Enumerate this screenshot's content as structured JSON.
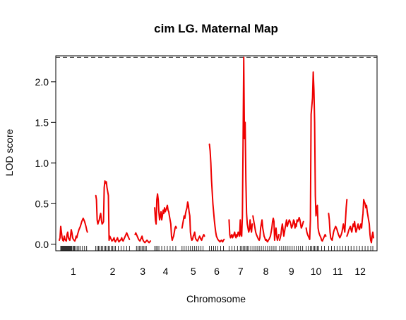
{
  "chart_data": {
    "type": "line",
    "title": "cim LG. Maternal Map",
    "xlabel": "Chromosome",
    "ylabel": "LOD score",
    "ylim": [
      -0.08,
      2.32
    ],
    "yticks": [
      0.0,
      0.5,
      1.0,
      1.5,
      2.0
    ],
    "ytick_labels": [
      "0.0",
      "0.5",
      "1.0",
      "1.5",
      "2.0"
    ],
    "threshold": 2.3,
    "xlim": [
      0,
      448
    ],
    "chromosomes": [
      {
        "label": "1",
        "start": 0,
        "end": 40,
        "x": [
          0,
          1,
          2,
          3,
          4,
          5,
          6,
          7,
          8,
          9,
          10,
          11,
          12,
          13,
          14,
          15,
          16,
          17,
          18,
          19,
          20,
          21,
          22,
          23,
          24,
          25,
          26,
          27,
          28,
          29,
          30,
          31,
          32,
          33,
          34,
          35,
          36,
          37,
          38,
          39,
          40
        ],
        "y": [
          0.05,
          0.08,
          0.22,
          0.15,
          0.08,
          0.05,
          0.04,
          0.1,
          0.06,
          0.05,
          0.04,
          0.12,
          0.15,
          0.08,
          0.06,
          0.05,
          0.1,
          0.18,
          0.14,
          0.08,
          0.06,
          0.05,
          0.04,
          0.06,
          0.1,
          0.08,
          0.12,
          0.15,
          0.18,
          0.2,
          0.22,
          0.25,
          0.28,
          0.3,
          0.32,
          0.3,
          0.28,
          0.25,
          0.22,
          0.18,
          0.15
        ]
      },
      {
        "label": "2",
        "start": 52,
        "end": 100,
        "x": [
          52,
          53,
          54,
          55,
          56,
          57,
          58,
          59,
          60,
          61,
          62,
          63,
          64,
          65,
          66,
          67,
          68,
          69,
          70,
          71,
          72,
          73,
          74,
          75,
          76,
          77,
          78,
          79,
          80,
          81,
          82,
          83,
          84,
          85,
          86,
          87,
          88,
          89,
          90,
          91,
          92,
          93,
          94,
          95,
          96,
          97,
          98,
          99,
          100
        ],
        "y": [
          0.6,
          0.55,
          0.3,
          0.25,
          0.28,
          0.3,
          0.35,
          0.38,
          0.3,
          0.25,
          0.26,
          0.28,
          0.7,
          0.78,
          0.75,
          0.77,
          0.7,
          0.65,
          0.6,
          0.05,
          0.1,
          0.08,
          0.06,
          0.04,
          0.05,
          0.06,
          0.08,
          0.04,
          0.03,
          0.05,
          0.06,
          0.08,
          0.05,
          0.03,
          0.04,
          0.05,
          0.06,
          0.08,
          0.05,
          0.04,
          0.06,
          0.08,
          0.1,
          0.12,
          0.14,
          0.12,
          0.1,
          0.08,
          0.06
        ]
      },
      {
        "label": "3",
        "start": 108,
        "end": 130,
        "x": [
          108,
          109,
          110,
          111,
          112,
          113,
          114,
          115,
          116,
          117,
          118,
          119,
          120,
          121,
          122,
          123,
          124,
          125,
          126,
          127,
          128,
          129,
          130
        ],
        "y": [
          0.12,
          0.14,
          0.12,
          0.1,
          0.08,
          0.06,
          0.05,
          0.04,
          0.06,
          0.08,
          0.1,
          0.06,
          0.04,
          0.03,
          0.02,
          0.03,
          0.04,
          0.05,
          0.04,
          0.03,
          0.02,
          0.03,
          0.04
        ]
      },
      {
        "label": "4",
        "start": 136,
        "end": 167,
        "x": [
          136,
          137,
          138,
          139,
          140,
          141,
          142,
          143,
          144,
          145,
          146,
          147,
          148,
          149,
          150,
          151,
          152,
          153,
          154,
          155,
          156,
          157,
          158,
          159,
          160,
          161,
          162,
          163,
          164,
          165,
          166,
          167
        ],
        "y": [
          0.45,
          0.3,
          0.25,
          0.55,
          0.62,
          0.55,
          0.4,
          0.3,
          0.35,
          0.4,
          0.3,
          0.35,
          0.42,
          0.38,
          0.45,
          0.4,
          0.42,
          0.45,
          0.48,
          0.42,
          0.4,
          0.35,
          0.3,
          0.25,
          0.1,
          0.05,
          0.08,
          0.1,
          0.15,
          0.2,
          0.22,
          0.2
        ]
      },
      {
        "label": "5",
        "start": 175,
        "end": 207,
        "x": [
          175,
          176,
          177,
          178,
          179,
          180,
          181,
          182,
          183,
          184,
          185,
          186,
          187,
          188,
          189,
          190,
          191,
          192,
          193,
          194,
          195,
          196,
          197,
          198,
          199,
          200,
          201,
          202,
          203,
          204,
          205,
          206,
          207
        ],
        "y": [
          0.2,
          0.25,
          0.3,
          0.35,
          0.32,
          0.38,
          0.42,
          0.45,
          0.52,
          0.48,
          0.4,
          0.35,
          0.15,
          0.08,
          0.05,
          0.06,
          0.1,
          0.12,
          0.15,
          0.08,
          0.06,
          0.05,
          0.04,
          0.06,
          0.08,
          0.1,
          0.08,
          0.06,
          0.05,
          0.08,
          0.1,
          0.12,
          0.1
        ]
      },
      {
        "label": "6",
        "start": 214,
        "end": 235,
        "x": [
          214,
          215,
          216,
          217,
          218,
          219,
          220,
          221,
          222,
          223,
          224,
          225,
          226,
          227,
          228,
          229,
          230,
          231,
          232,
          233,
          234,
          235
        ],
        "y": [
          1.23,
          1.15,
          1.0,
          0.8,
          0.65,
          0.5,
          0.4,
          0.3,
          0.22,
          0.15,
          0.1,
          0.08,
          0.06,
          0.05,
          0.04,
          0.03,
          0.04,
          0.05,
          0.04,
          0.03,
          0.05,
          0.06
        ]
      },
      {
        "label": "7",
        "start": 242,
        "end": 275,
        "x": [
          242,
          243,
          244,
          245,
          246,
          247,
          248,
          249,
          250,
          251,
          252,
          253,
          254,
          255,
          256,
          257,
          258,
          259,
          260,
          261,
          262,
          263,
          264,
          265,
          266,
          267,
          268,
          269,
          270,
          271,
          272,
          273,
          274,
          275
        ],
        "y": [
          0.3,
          0.12,
          0.08,
          0.1,
          0.12,
          0.08,
          0.1,
          0.12,
          0.15,
          0.1,
          0.08,
          0.12,
          0.1,
          0.15,
          0.14,
          0.1,
          0.3,
          0.12,
          0.1,
          0.35,
          1.2,
          2.3,
          1.3,
          1.5,
          0.8,
          0.38,
          0.25,
          0.2,
          0.15,
          0.18,
          0.3,
          0.2,
          0.15,
          0.25
        ]
      },
      {
        "label": "8",
        "start": 276,
        "end": 313,
        "x": [
          276,
          277,
          278,
          279,
          280,
          281,
          282,
          283,
          284,
          285,
          286,
          287,
          288,
          289,
          290,
          291,
          292,
          293,
          294,
          295,
          296,
          297,
          298,
          299,
          300,
          301,
          302,
          303,
          304,
          305,
          306,
          307,
          308,
          309,
          310,
          311,
          312,
          313
        ],
        "y": [
          0.35,
          0.3,
          0.25,
          0.2,
          0.15,
          0.12,
          0.1,
          0.08,
          0.06,
          0.05,
          0.08,
          0.2,
          0.25,
          0.3,
          0.2,
          0.15,
          0.1,
          0.08,
          0.05,
          0.06,
          0.04,
          0.03,
          0.05,
          0.06,
          0.08,
          0.1,
          0.15,
          0.2,
          0.28,
          0.32,
          0.28,
          0.05,
          0.15,
          0.2,
          0.1,
          0.05,
          0.08,
          0.12
        ]
      },
      {
        "label": "9",
        "start": 314,
        "end": 348,
        "x": [
          314,
          315,
          316,
          317,
          318,
          319,
          320,
          321,
          322,
          323,
          324,
          325,
          326,
          327,
          328,
          329,
          330,
          331,
          332,
          333,
          334,
          335,
          336,
          337,
          338,
          339,
          340,
          341,
          342,
          343,
          344,
          345,
          346,
          347,
          348
        ],
        "y": [
          0.05,
          0.08,
          0.12,
          0.2,
          0.25,
          0.18,
          0.1,
          0.15,
          0.2,
          0.25,
          0.3,
          0.22,
          0.25,
          0.28,
          0.3,
          0.28,
          0.25,
          0.2,
          0.22,
          0.25,
          0.3,
          0.28,
          0.2,
          0.25,
          0.22,
          0.3,
          0.28,
          0.3,
          0.33,
          0.3,
          0.25,
          0.2,
          0.22,
          0.25,
          0.28
        ]
      },
      {
        "label": "10",
        "start": 352,
        "end": 380,
        "x": [
          352,
          353,
          354,
          355,
          356,
          357,
          358,
          359,
          360,
          361,
          362,
          363,
          364,
          365,
          366,
          367,
          368,
          369,
          370,
          371,
          372,
          373,
          374,
          375,
          376,
          377,
          378,
          379,
          380
        ],
        "y": [
          0.2,
          0.15,
          0.12,
          0.1,
          0.08,
          0.06,
          0.3,
          1.6,
          1.7,
          1.8,
          2.12,
          1.9,
          1.5,
          0.6,
          0.35,
          0.45,
          0.48,
          0.2,
          0.15,
          0.12,
          0.1,
          0.08,
          0.05,
          0.04,
          0.06,
          0.08,
          0.1,
          0.12,
          0.1
        ]
      },
      {
        "label": "11",
        "start": 384,
        "end": 410,
        "x": [
          384,
          385,
          386,
          387,
          388,
          389,
          390,
          391,
          392,
          393,
          394,
          395,
          396,
          397,
          398,
          399,
          400,
          401,
          402,
          403,
          404,
          405,
          406,
          407,
          408,
          409,
          410
        ],
        "y": [
          0.38,
          0.3,
          0.15,
          0.08,
          0.06,
          0.05,
          0.1,
          0.15,
          0.18,
          0.2,
          0.22,
          0.2,
          0.18,
          0.15,
          0.12,
          0.1,
          0.08,
          0.1,
          0.12,
          0.15,
          0.2,
          0.25,
          0.2,
          0.15,
          0.3,
          0.45,
          0.55
        ]
      },
      {
        "label": "12",
        "start": 410,
        "end": 448,
        "x": [
          410,
          411,
          412,
          413,
          414,
          415,
          416,
          417,
          418,
          419,
          420,
          421,
          422,
          423,
          424,
          425,
          426,
          427,
          428,
          429,
          430,
          431,
          432,
          433,
          434,
          435,
          436,
          437,
          438,
          439,
          440,
          441,
          442,
          443,
          444,
          445,
          446,
          447,
          448
        ],
        "y": [
          0.1,
          0.12,
          0.15,
          0.18,
          0.2,
          0.22,
          0.18,
          0.15,
          0.2,
          0.25,
          0.22,
          0.28,
          0.2,
          0.15,
          0.18,
          0.22,
          0.25,
          0.2,
          0.18,
          0.22,
          0.25,
          0.2,
          0.3,
          0.38,
          0.55,
          0.52,
          0.5,
          0.45,
          0.48,
          0.4,
          0.35,
          0.3,
          0.25,
          0.12,
          0.05,
          0.02,
          0.1,
          0.15,
          0.08
        ]
      }
    ],
    "markers": [
      2,
      3,
      4,
      5,
      6,
      7,
      8,
      9,
      10,
      11,
      12,
      13,
      14,
      15,
      16,
      17,
      18,
      20,
      21,
      22,
      24,
      26,
      28,
      30,
      33,
      36,
      39,
      52,
      54,
      56,
      58,
      60,
      62,
      64,
      66,
      68,
      70,
      72,
      74,
      76,
      78,
      80,
      84,
      88,
      92,
      96,
      100,
      110,
      112,
      114,
      116,
      118,
      120,
      122,
      124,
      136,
      138,
      140,
      142,
      146,
      150,
      154,
      158,
      162,
      166,
      175,
      178,
      181,
      184,
      187,
      190,
      193,
      196,
      199,
      202,
      205,
      214,
      217,
      220,
      223,
      226,
      230,
      234,
      242,
      246,
      250,
      254,
      258,
      260,
      262,
      264,
      266,
      268,
      270,
      273,
      276,
      279,
      282,
      285,
      288,
      291,
      294,
      297,
      300,
      303,
      306,
      309,
      314,
      317,
      320,
      323,
      326,
      329,
      332,
      335,
      338,
      341,
      344,
      347,
      352,
      355,
      358,
      360,
      362,
      364,
      366,
      368,
      370,
      374,
      378,
      384,
      388,
      392,
      396,
      400,
      404,
      408,
      412,
      416,
      420,
      424,
      428,
      432,
      436,
      440,
      444,
      447
    ]
  }
}
